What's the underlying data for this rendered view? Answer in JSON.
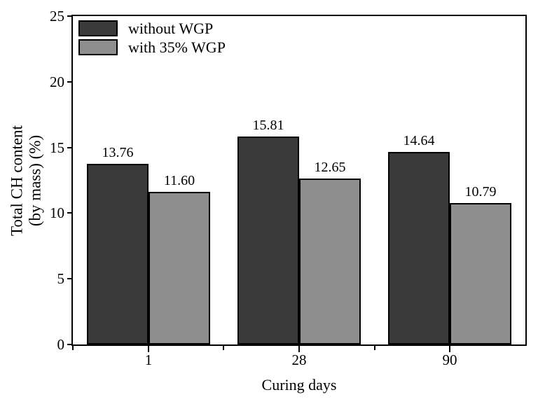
{
  "chart_data": {
    "type": "bar",
    "title": "",
    "xlabel": "Curing days",
    "ylabel_line1": "Total CH content",
    "ylabel_line2": "(by mass) (%)",
    "categories": [
      "1",
      "28",
      "90"
    ],
    "series": [
      {
        "name": "without WGP",
        "color": "#3a3a3a",
        "values": [
          13.76,
          15.81,
          14.64
        ],
        "labels": [
          "13.76",
          "15.81",
          "14.64"
        ]
      },
      {
        "name": "with 35% WGP",
        "color": "#8e8e8e",
        "values": [
          11.6,
          12.65,
          10.79
        ],
        "labels": [
          "11.60",
          "12.65",
          "10.79"
        ]
      }
    ],
    "ylim": [
      0,
      25
    ],
    "yticks": [
      "0",
      "5",
      "10",
      "15",
      "20",
      "25"
    ],
    "ytick_step": 5,
    "grid": false,
    "legend_position": "top-left-inside",
    "axis_color": "#000000",
    "background_color": "#ffffff"
  }
}
